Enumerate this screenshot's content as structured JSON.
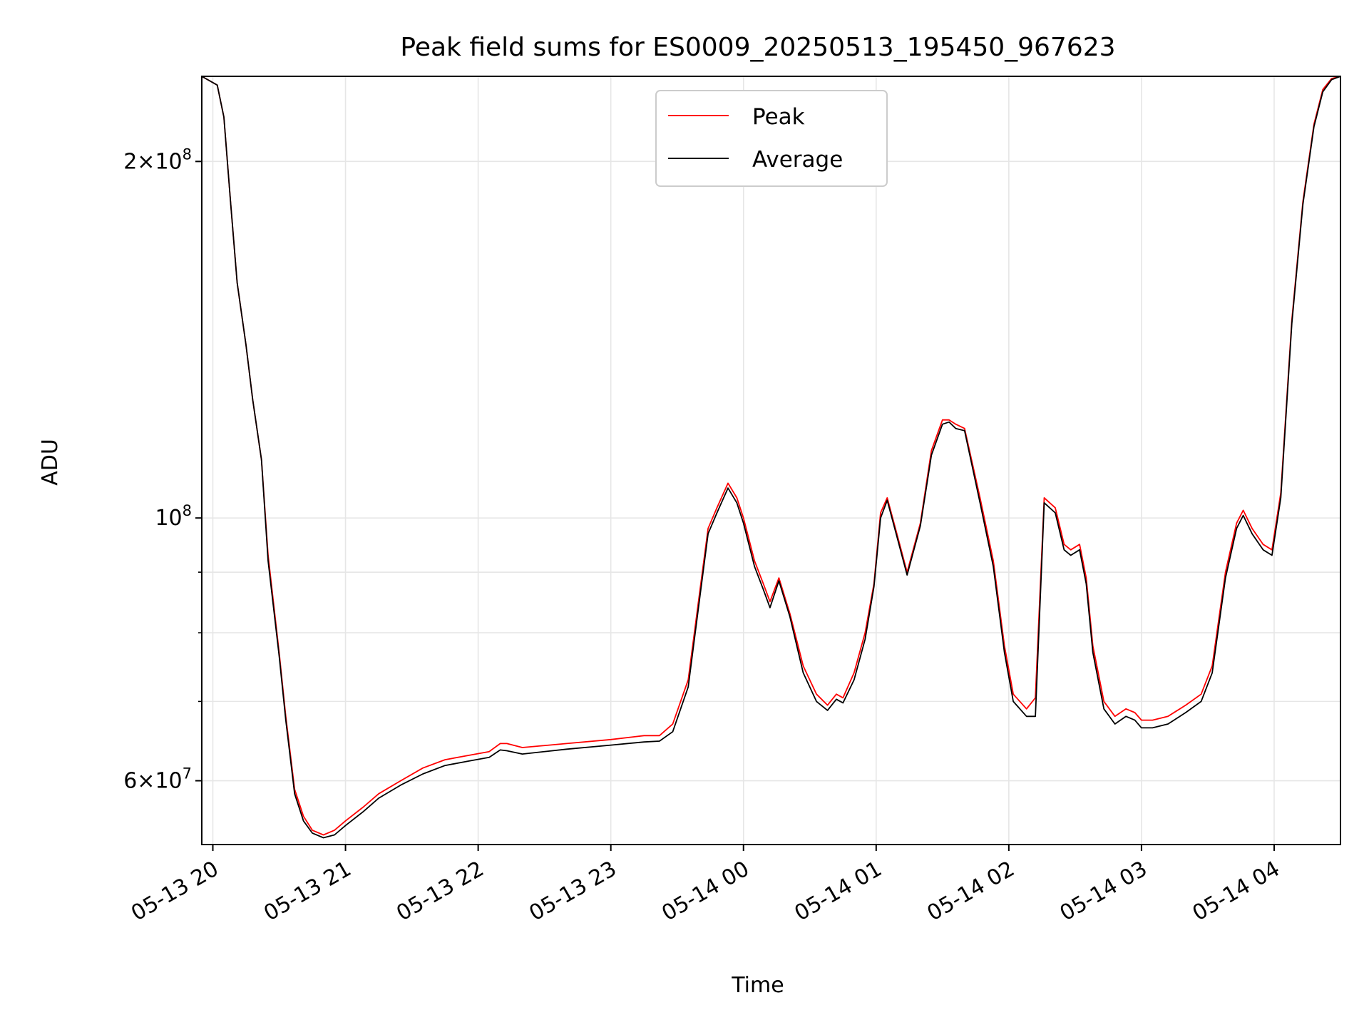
{
  "chart_data": {
    "type": "line",
    "title": "Peak field sums for ES0009_20250513_195450_967623",
    "xlabel": "Time",
    "ylabel": "ADU",
    "x_unit": "datetime",
    "xlim": [
      "2025-05-13T19:55",
      "2025-05-14T04:30"
    ],
    "ylim": [
      53000000,
      236000000
    ],
    "yscale": "log",
    "grid": true,
    "legend_position": "top-center",
    "x_ticks": [
      {
        "value": "2025-05-13T20:00",
        "label": "05-13 20"
      },
      {
        "value": "2025-05-13T21:00",
        "label": "05-13 21"
      },
      {
        "value": "2025-05-13T22:00",
        "label": "05-13 22"
      },
      {
        "value": "2025-05-13T23:00",
        "label": "05-13 23"
      },
      {
        "value": "2025-05-14T00:00",
        "label": "05-14 00"
      },
      {
        "value": "2025-05-14T01:00",
        "label": "05-14 01"
      },
      {
        "value": "2025-05-14T02:00",
        "label": "05-14 02"
      },
      {
        "value": "2025-05-14T03:00",
        "label": "05-14 03"
      },
      {
        "value": "2025-05-14T04:00",
        "label": "05-14 04"
      }
    ],
    "y_ticks": [
      {
        "value": 60000000,
        "mantissa": "6",
        "exponent": "7"
      },
      {
        "value": 100000000,
        "mantissa": "",
        "exponent": "8"
      },
      {
        "value": 200000000,
        "mantissa": "2",
        "exponent": "8"
      }
    ],
    "y_minor_ticks": [
      70000000,
      80000000,
      90000000
    ],
    "series": [
      {
        "name": "Peak",
        "color": "#ff0000",
        "x": [
          "2025-05-13T19:55",
          "2025-05-13T20:02",
          "2025-05-13T20:05",
          "2025-05-13T20:08",
          "2025-05-13T20:11",
          "2025-05-13T20:15",
          "2025-05-13T20:18",
          "2025-05-13T20:22",
          "2025-05-13T20:25",
          "2025-05-13T20:30",
          "2025-05-13T20:33",
          "2025-05-13T20:37",
          "2025-05-13T20:41",
          "2025-05-13T20:45",
          "2025-05-13T20:50",
          "2025-05-13T20:55",
          "2025-05-13T21:00",
          "2025-05-13T21:08",
          "2025-05-13T21:15",
          "2025-05-13T21:25",
          "2025-05-13T21:35",
          "2025-05-13T21:45",
          "2025-05-13T21:55",
          "2025-05-13T22:05",
          "2025-05-13T22:10",
          "2025-05-13T22:13",
          "2025-05-13T22:20",
          "2025-05-13T22:40",
          "2025-05-13T23:00",
          "2025-05-13T23:15",
          "2025-05-13T23:22",
          "2025-05-13T23:28",
          "2025-05-13T23:35",
          "2025-05-13T23:40",
          "2025-05-13T23:44",
          "2025-05-13T23:48",
          "2025-05-13T23:53",
          "2025-05-13T23:57",
          "2025-05-14T00:00",
          "2025-05-14T00:05",
          "2025-05-14T00:09",
          "2025-05-14T00:12",
          "2025-05-14T00:16",
          "2025-05-14T00:21",
          "2025-05-14T00:27",
          "2025-05-14T00:33",
          "2025-05-14T00:38",
          "2025-05-14T00:42",
          "2025-05-14T00:45",
          "2025-05-14T00:50",
          "2025-05-14T00:55",
          "2025-05-14T00:59",
          "2025-05-14T01:02",
          "2025-05-14T01:05",
          "2025-05-14T01:10",
          "2025-05-14T01:14",
          "2025-05-14T01:20",
          "2025-05-14T01:25",
          "2025-05-14T01:30",
          "2025-05-14T01:33",
          "2025-05-14T01:36",
          "2025-05-14T01:40",
          "2025-05-14T01:47",
          "2025-05-14T01:53",
          "2025-05-14T01:58",
          "2025-05-14T02:02",
          "2025-05-14T02:08",
          "2025-05-14T02:12",
          "2025-05-14T02:16",
          "2025-05-14T02:21",
          "2025-05-14T02:25",
          "2025-05-14T02:28",
          "2025-05-14T02:32",
          "2025-05-14T02:35",
          "2025-05-14T02:38",
          "2025-05-14T02:43",
          "2025-05-14T02:48",
          "2025-05-14T02:53",
          "2025-05-14T02:57",
          "2025-05-14T03:00",
          "2025-05-14T03:05",
          "2025-05-14T03:12",
          "2025-05-14T03:20",
          "2025-05-14T03:27",
          "2025-05-14T03:32",
          "2025-05-14T03:38",
          "2025-05-14T03:43",
          "2025-05-14T03:46",
          "2025-05-14T03:50",
          "2025-05-14T03:55",
          "2025-05-14T03:59",
          "2025-05-14T04:03",
          "2025-05-14T04:08",
          "2025-05-14T04:13",
          "2025-05-14T04:18",
          "2025-05-14T04:22",
          "2025-05-14T04:26",
          "2025-05-14T04:30"
        ],
        "values": [
          236000000,
          232000000,
          218000000,
          185000000,
          158000000,
          140000000,
          126000000,
          112000000,
          93000000,
          77000000,
          68000000,
          59000000,
          56000000,
          54500000,
          54000000,
          54500000,
          55500000,
          57000000,
          58500000,
          60000000,
          61500000,
          62500000,
          63000000,
          63500000,
          64500000,
          64500000,
          64000000,
          64500000,
          65000000,
          65500000,
          65500000,
          67000000,
          73000000,
          86000000,
          98000000,
          102000000,
          107000000,
          104000000,
          100000000,
          92000000,
          88000000,
          85000000,
          89000000,
          83000000,
          75000000,
          71000000,
          69500000,
          71000000,
          70500000,
          74000000,
          80000000,
          88000000,
          101000000,
          104000000,
          96000000,
          90000000,
          99000000,
          114000000,
          121000000,
          121000000,
          120000000,
          119000000,
          104000000,
          92000000,
          78000000,
          71000000,
          69000000,
          70500000,
          104000000,
          102000000,
          95000000,
          94000000,
          95000000,
          89000000,
          78000000,
          70000000,
          68000000,
          69000000,
          68500000,
          67500000,
          67500000,
          68000000,
          69500000,
          71000000,
          75000000,
          90000000,
          99000000,
          101500000,
          98000000,
          95000000,
          94000000,
          105000000,
          147000000,
          185000000,
          215000000,
          230000000,
          235000000,
          236000000
        ]
      },
      {
        "name": "Average",
        "color": "#000000",
        "x": [
          "2025-05-13T19:55",
          "2025-05-13T20:02",
          "2025-05-13T20:05",
          "2025-05-13T20:08",
          "2025-05-13T20:11",
          "2025-05-13T20:15",
          "2025-05-13T20:18",
          "2025-05-13T20:22",
          "2025-05-13T20:25",
          "2025-05-13T20:30",
          "2025-05-13T20:33",
          "2025-05-13T20:37",
          "2025-05-13T20:41",
          "2025-05-13T20:45",
          "2025-05-13T20:50",
          "2025-05-13T20:55",
          "2025-05-13T21:00",
          "2025-05-13T21:08",
          "2025-05-13T21:15",
          "2025-05-13T21:25",
          "2025-05-13T21:35",
          "2025-05-13T21:45",
          "2025-05-13T21:55",
          "2025-05-13T22:05",
          "2025-05-13T22:10",
          "2025-05-13T22:13",
          "2025-05-13T22:20",
          "2025-05-13T22:40",
          "2025-05-13T23:00",
          "2025-05-13T23:15",
          "2025-05-13T23:22",
          "2025-05-13T23:28",
          "2025-05-13T23:35",
          "2025-05-13T23:40",
          "2025-05-13T23:44",
          "2025-05-13T23:48",
          "2025-05-13T23:53",
          "2025-05-13T23:57",
          "2025-05-14T00:00",
          "2025-05-14T00:05",
          "2025-05-14T00:09",
          "2025-05-14T00:12",
          "2025-05-14T00:16",
          "2025-05-14T00:21",
          "2025-05-14T00:27",
          "2025-05-14T00:33",
          "2025-05-14T00:38",
          "2025-05-14T00:42",
          "2025-05-14T00:45",
          "2025-05-14T00:50",
          "2025-05-14T00:55",
          "2025-05-14T00:59",
          "2025-05-14T01:02",
          "2025-05-14T01:05",
          "2025-05-14T01:10",
          "2025-05-14T01:14",
          "2025-05-14T01:20",
          "2025-05-14T01:25",
          "2025-05-14T01:30",
          "2025-05-14T01:33",
          "2025-05-14T01:36",
          "2025-05-14T01:40",
          "2025-05-14T01:47",
          "2025-05-14T01:53",
          "2025-05-14T01:58",
          "2025-05-14T02:02",
          "2025-05-14T02:08",
          "2025-05-14T02:12",
          "2025-05-14T02:16",
          "2025-05-14T02:21",
          "2025-05-14T02:25",
          "2025-05-14T02:28",
          "2025-05-14T02:32",
          "2025-05-14T02:35",
          "2025-05-14T02:38",
          "2025-05-14T02:43",
          "2025-05-14T02:48",
          "2025-05-14T02:53",
          "2025-05-14T02:57",
          "2025-05-14T03:00",
          "2025-05-14T03:05",
          "2025-05-14T03:12",
          "2025-05-14T03:20",
          "2025-05-14T03:27",
          "2025-05-14T03:32",
          "2025-05-14T03:38",
          "2025-05-14T03:43",
          "2025-05-14T03:46",
          "2025-05-14T03:50",
          "2025-05-14T03:55",
          "2025-05-14T03:59",
          "2025-05-14T04:03",
          "2025-05-14T04:08",
          "2025-05-14T04:13",
          "2025-05-14T04:18",
          "2025-05-14T04:22",
          "2025-05-14T04:26",
          "2025-05-14T04:30"
        ],
        "values": [
          236000000,
          232000000,
          218000000,
          185000000,
          158000000,
          140000000,
          126000000,
          112000000,
          92000000,
          76500000,
          67500000,
          58500000,
          55500000,
          54200000,
          53700000,
          54000000,
          55000000,
          56500000,
          58000000,
          59500000,
          60800000,
          61800000,
          62300000,
          62800000,
          63700000,
          63600000,
          63200000,
          63800000,
          64300000,
          64700000,
          64800000,
          66000000,
          72000000,
          85000000,
          97000000,
          101000000,
          106000000,
          103000000,
          99000000,
          91000000,
          87000000,
          84000000,
          88500000,
          82500000,
          74000000,
          70000000,
          68800000,
          70300000,
          69800000,
          73000000,
          79000000,
          87500000,
          100000000,
          103500000,
          95500000,
          89500000,
          98500000,
          113000000,
          120000000,
          120500000,
          119000000,
          118500000,
          103000000,
          91000000,
          77000000,
          70000000,
          68000000,
          68000000,
          103000000,
          101000000,
          94000000,
          93000000,
          94000000,
          88000000,
          77000000,
          69000000,
          67000000,
          68000000,
          67500000,
          66500000,
          66500000,
          67000000,
          68500000,
          70000000,
          74000000,
          89000000,
          98000000,
          100500000,
          97000000,
          94000000,
          93000000,
          104000000,
          146000000,
          184000000,
          214000000,
          229000000,
          234500000,
          236000000
        ]
      }
    ]
  }
}
